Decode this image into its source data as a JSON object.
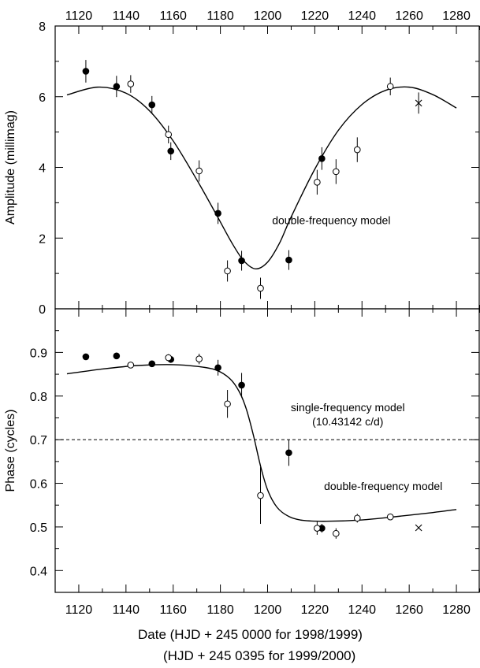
{
  "chart_data": [
    {
      "type": "scatter",
      "ylabel": "Amplitude (millimag)",
      "xlim": [
        1110,
        1290
      ],
      "ylim": [
        0,
        8
      ],
      "x_ticks": [
        1120,
        1140,
        1160,
        1180,
        1200,
        1220,
        1240,
        1260,
        1280
      ],
      "y_ticks": [
        0,
        2,
        4,
        6,
        8
      ],
      "x_tick_labels_position": "top",
      "annotations": [
        {
          "text": "double-frequency model",
          "x": 1227,
          "y": 2.4
        }
      ],
      "series": [
        {
          "marker": "filled-circle",
          "points": [
            {
              "x": 1123,
              "y": 6.72,
              "err": 0.32
            },
            {
              "x": 1136,
              "y": 6.29,
              "err": 0.3
            },
            {
              "x": 1151,
              "y": 5.77,
              "err": 0.25
            },
            {
              "x": 1159,
              "y": 4.46,
              "err": 0.25
            },
            {
              "x": 1179,
              "y": 2.7,
              "err": 0.3
            },
            {
              "x": 1189,
              "y": 1.36,
              "err": 0.28
            },
            {
              "x": 1209,
              "y": 1.38,
              "err": 0.28
            },
            {
              "x": 1223,
              "y": 4.25,
              "err": 0.32
            }
          ]
        },
        {
          "marker": "open-circle",
          "points": [
            {
              "x": 1142,
              "y": 6.36,
              "err": 0.25
            },
            {
              "x": 1158,
              "y": 4.93,
              "err": 0.25
            },
            {
              "x": 1171,
              "y": 3.9,
              "err": 0.3
            },
            {
              "x": 1183,
              "y": 1.07,
              "err": 0.3
            },
            {
              "x": 1197,
              "y": 0.58,
              "err": 0.3
            },
            {
              "x": 1221,
              "y": 3.58,
              "err": 0.35
            },
            {
              "x": 1229,
              "y": 3.88,
              "err": 0.35
            },
            {
              "x": 1238,
              "y": 4.5,
              "err": 0.35
            },
            {
              "x": 1252,
              "y": 6.29,
              "err": 0.25
            }
          ]
        },
        {
          "marker": "cross",
          "points": [
            {
              "x": 1264,
              "y": 5.82,
              "err": 0.3
            }
          ]
        },
        {
          "type": "line",
          "style": "solid",
          "curve": [
            {
              "x": 1115,
              "y": 6.05
            },
            {
              "x": 1128,
              "y": 6.27
            },
            {
              "x": 1140,
              "y": 6.1
            },
            {
              "x": 1150,
              "y": 5.6
            },
            {
              "x": 1160,
              "y": 4.75
            },
            {
              "x": 1170,
              "y": 3.65
            },
            {
              "x": 1178,
              "y": 2.7
            },
            {
              "x": 1185,
              "y": 1.85
            },
            {
              "x": 1190,
              "y": 1.35
            },
            {
              "x": 1195,
              "y": 1.13
            },
            {
              "x": 1200,
              "y": 1.32
            },
            {
              "x": 1205,
              "y": 1.85
            },
            {
              "x": 1210,
              "y": 2.6
            },
            {
              "x": 1220,
              "y": 3.95
            },
            {
              "x": 1230,
              "y": 5.05
            },
            {
              "x": 1240,
              "y": 5.78
            },
            {
              "x": 1250,
              "y": 6.18
            },
            {
              "x": 1260,
              "y": 6.27
            },
            {
              "x": 1270,
              "y": 6.06
            },
            {
              "x": 1280,
              "y": 5.68
            }
          ]
        }
      ]
    },
    {
      "type": "scatter",
      "ylabel": "Phase (cycles)",
      "xlabel": [
        "Date (HJD + 245 0000 for 1998/1999)",
        "(HJD + 245 0395 for 1999/2000)"
      ],
      "xlim": [
        1110,
        1290
      ],
      "ylim": [
        0.35,
        1.0
      ],
      "x_ticks": [
        1120,
        1140,
        1160,
        1180,
        1200,
        1220,
        1240,
        1260,
        1280
      ],
      "y_ticks": [
        0.4,
        0.5,
        0.6,
        0.7,
        0.8,
        0.9
      ],
      "annotations": [
        {
          "text": "single-frequency model",
          "x": 1234,
          "y": 0.765
        },
        {
          "text": "(10.43142 c/d)",
          "x": 1234,
          "y": 0.733
        },
        {
          "text": "double-frequency model",
          "x": 1249,
          "y": 0.585
        }
      ],
      "series": [
        {
          "marker": "filled-circle",
          "points": [
            {
              "x": 1123,
              "y": 0.89,
              "err": 0.006
            },
            {
              "x": 1136,
              "y": 0.892,
              "err": 0.006
            },
            {
              "x": 1151,
              "y": 0.874,
              "err": 0.006
            },
            {
              "x": 1159,
              "y": 0.884,
              "err": 0.008
            },
            {
              "x": 1179,
              "y": 0.865,
              "err": 0.018
            },
            {
              "x": 1189,
              "y": 0.825,
              "err": 0.028
            },
            {
              "x": 1209,
              "y": 0.67,
              "err": 0.03
            },
            {
              "x": 1223,
              "y": 0.497,
              "err": 0.01
            }
          ]
        },
        {
          "marker": "open-circle",
          "points": [
            {
              "x": 1142,
              "y": 0.871,
              "err": 0.005
            },
            {
              "x": 1158,
              "y": 0.888,
              "err": 0.008
            },
            {
              "x": 1171,
              "y": 0.885,
              "err": 0.012
            },
            {
              "x": 1183,
              "y": 0.782,
              "err": 0.032
            },
            {
              "x": 1197,
              "y": 0.572,
              "err": 0.065
            },
            {
              "x": 1221,
              "y": 0.497,
              "err": 0.015
            },
            {
              "x": 1229,
              "y": 0.485,
              "err": 0.012
            },
            {
              "x": 1238,
              "y": 0.52,
              "err": 0.01
            },
            {
              "x": 1252,
              "y": 0.523,
              "err": 0.006
            }
          ]
        },
        {
          "marker": "cross",
          "points": [
            {
              "x": 1264,
              "y": 0.498,
              "err": 0
            }
          ]
        },
        {
          "type": "line",
          "style": "solid",
          "curve": [
            {
              "x": 1115,
              "y": 0.851
            },
            {
              "x": 1130,
              "y": 0.862
            },
            {
              "x": 1145,
              "y": 0.87
            },
            {
              "x": 1160,
              "y": 0.872
            },
            {
              "x": 1170,
              "y": 0.868
            },
            {
              "x": 1178,
              "y": 0.86
            },
            {
              "x": 1184,
              "y": 0.84
            },
            {
              "x": 1188,
              "y": 0.81
            },
            {
              "x": 1191,
              "y": 0.77
            },
            {
              "x": 1194,
              "y": 0.71
            },
            {
              "x": 1197,
              "y": 0.64
            },
            {
              "x": 1200,
              "y": 0.585
            },
            {
              "x": 1204,
              "y": 0.545
            },
            {
              "x": 1209,
              "y": 0.524
            },
            {
              "x": 1215,
              "y": 0.515
            },
            {
              "x": 1225,
              "y": 0.513
            },
            {
              "x": 1240,
              "y": 0.516
            },
            {
              "x": 1255,
              "y": 0.524
            },
            {
              "x": 1270,
              "y": 0.533
            },
            {
              "x": 1280,
              "y": 0.54
            }
          ]
        },
        {
          "type": "line",
          "style": "dashed",
          "curve": [
            {
              "x": 1110,
              "y": 0.7
            },
            {
              "x": 1290,
              "y": 0.7
            }
          ]
        }
      ]
    }
  ]
}
